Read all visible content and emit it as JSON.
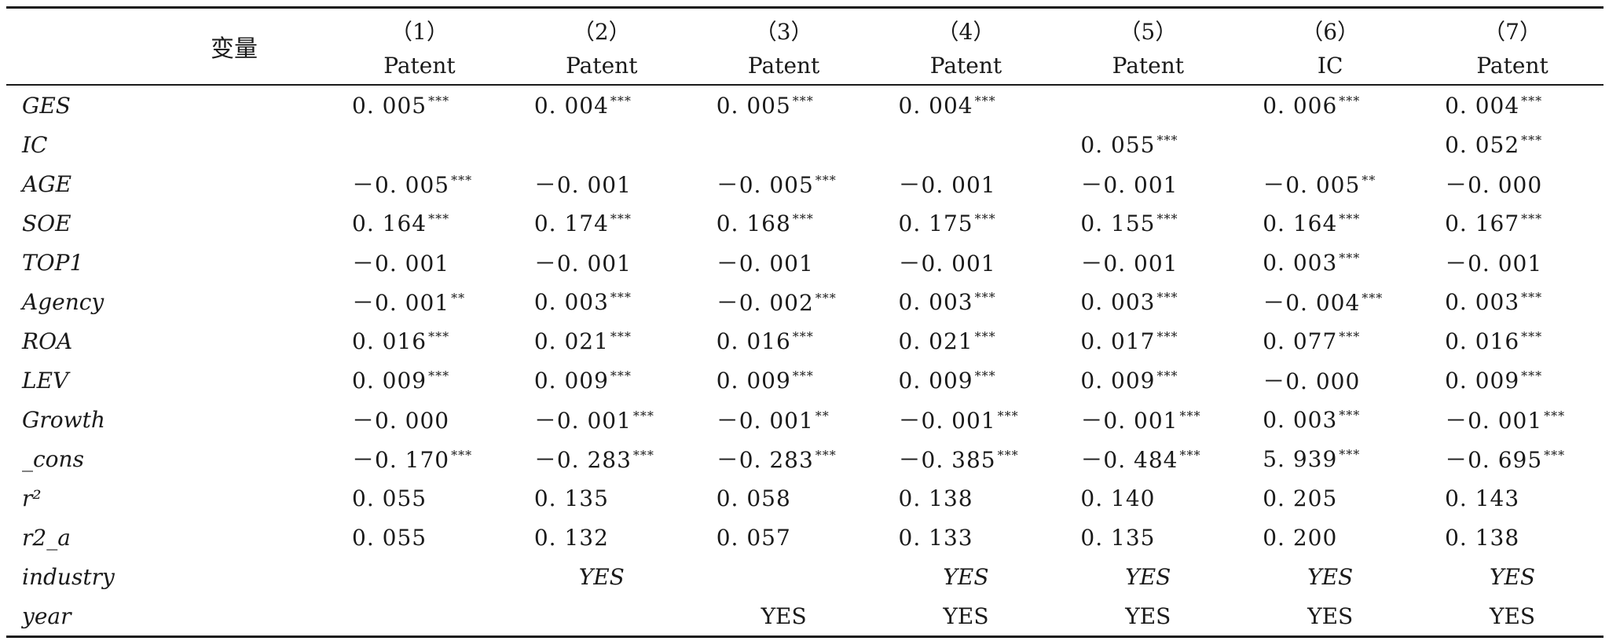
{
  "table": {
    "variable_header": "变量",
    "column_numbers": [
      "（1）",
      "（2）",
      "（3）",
      "（4）",
      "（5）",
      "（6）",
      "（7）"
    ],
    "dependent_vars": [
      "Patent",
      "Patent",
      "Patent",
      "Patent",
      "Patent",
      "IC",
      "Patent"
    ],
    "rows": [
      {
        "var": "GES",
        "cells": [
          {
            "v": "0. 005",
            "s": "***"
          },
          {
            "v": "0. 004",
            "s": "***"
          },
          {
            "v": "0. 005",
            "s": "***"
          },
          {
            "v": "0. 004",
            "s": "***"
          },
          {
            "v": "",
            "s": ""
          },
          {
            "v": "0. 006",
            "s": "***"
          },
          {
            "v": "0. 004",
            "s": "***"
          }
        ]
      },
      {
        "var": "IC",
        "cells": [
          {
            "v": "",
            "s": ""
          },
          {
            "v": "",
            "s": ""
          },
          {
            "v": "",
            "s": ""
          },
          {
            "v": "",
            "s": ""
          },
          {
            "v": "0. 055",
            "s": "***"
          },
          {
            "v": "",
            "s": ""
          },
          {
            "v": "0. 052",
            "s": "***"
          }
        ]
      },
      {
        "var": "AGE",
        "cells": [
          {
            "v": "－0. 005",
            "s": "***"
          },
          {
            "v": "－0. 001",
            "s": ""
          },
          {
            "v": "－0. 005",
            "s": "***"
          },
          {
            "v": "－0. 001",
            "s": ""
          },
          {
            "v": "－0. 001",
            "s": ""
          },
          {
            "v": "－0. 005",
            "s": "**"
          },
          {
            "v": "－0. 000",
            "s": ""
          }
        ]
      },
      {
        "var": "SOE",
        "cells": [
          {
            "v": "0. 164",
            "s": "***"
          },
          {
            "v": "0. 174",
            "s": "***"
          },
          {
            "v": "0. 168",
            "s": "***"
          },
          {
            "v": "0. 175",
            "s": "***"
          },
          {
            "v": "0. 155",
            "s": "***"
          },
          {
            "v": "0. 164",
            "s": "***"
          },
          {
            "v": "0. 167",
            "s": "***"
          }
        ]
      },
      {
        "var": "TOP1",
        "cells": [
          {
            "v": "－0. 001",
            "s": ""
          },
          {
            "v": "－0. 001",
            "s": ""
          },
          {
            "v": "－0. 001",
            "s": ""
          },
          {
            "v": "－0. 001",
            "s": ""
          },
          {
            "v": "－0. 001",
            "s": ""
          },
          {
            "v": "0. 003",
            "s": "***"
          },
          {
            "v": "－0. 001",
            "s": ""
          }
        ]
      },
      {
        "var": "Agency",
        "cells": [
          {
            "v": "－0. 001",
            "s": "**"
          },
          {
            "v": "0. 003",
            "s": "***"
          },
          {
            "v": "－0. 002",
            "s": "***"
          },
          {
            "v": "0. 003",
            "s": "***"
          },
          {
            "v": "0. 003",
            "s": "***"
          },
          {
            "v": "－0. 004",
            "s": "***"
          },
          {
            "v": "0. 003",
            "s": "***"
          }
        ]
      },
      {
        "var": "ROA",
        "cells": [
          {
            "v": "0. 016",
            "s": "***"
          },
          {
            "v": "0. 021",
            "s": "***"
          },
          {
            "v": "0. 016",
            "s": "***"
          },
          {
            "v": "0. 021",
            "s": "***"
          },
          {
            "v": "0. 017",
            "s": "***"
          },
          {
            "v": "0. 077",
            "s": "***"
          },
          {
            "v": "0. 016",
            "s": "***"
          }
        ]
      },
      {
        "var": "LEV",
        "cells": [
          {
            "v": "0. 009",
            "s": "***"
          },
          {
            "v": "0. 009",
            "s": "***"
          },
          {
            "v": "0. 009",
            "s": "***"
          },
          {
            "v": "0. 009",
            "s": "***"
          },
          {
            "v": "0. 009",
            "s": "***"
          },
          {
            "v": "－0. 000",
            "s": ""
          },
          {
            "v": "0. 009",
            "s": "***"
          }
        ]
      },
      {
        "var": "Growth",
        "cells": [
          {
            "v": "－0. 000",
            "s": ""
          },
          {
            "v": "－0. 001",
            "s": "***"
          },
          {
            "v": "－0. 001",
            "s": "**"
          },
          {
            "v": "－0. 001",
            "s": "***"
          },
          {
            "v": "－0. 001",
            "s": "***"
          },
          {
            "v": "0. 003",
            "s": "***"
          },
          {
            "v": "－0. 001",
            "s": "***"
          }
        ]
      },
      {
        "var": "_cons",
        "cells": [
          {
            "v": "－0. 170",
            "s": "***"
          },
          {
            "v": "－0. 283",
            "s": "***"
          },
          {
            "v": "－0. 283",
            "s": "***"
          },
          {
            "v": "－0. 385",
            "s": "***"
          },
          {
            "v": "－0. 484",
            "s": "***"
          },
          {
            "v": "5. 939",
            "s": "***"
          },
          {
            "v": "－0. 695",
            "s": "***"
          }
        ]
      },
      {
        "var": "r²",
        "cells": [
          {
            "v": "0. 055",
            "s": ""
          },
          {
            "v": "0. 135",
            "s": ""
          },
          {
            "v": "0. 058",
            "s": ""
          },
          {
            "v": "0. 138",
            "s": ""
          },
          {
            "v": "0. 140",
            "s": ""
          },
          {
            "v": "0. 205",
            "s": ""
          },
          {
            "v": "0. 143",
            "s": ""
          }
        ]
      },
      {
        "var": "r2_a",
        "cells": [
          {
            "v": "0. 055",
            "s": ""
          },
          {
            "v": "0. 132",
            "s": ""
          },
          {
            "v": "0. 057",
            "s": ""
          },
          {
            "v": "0. 133",
            "s": ""
          },
          {
            "v": "0. 135",
            "s": ""
          },
          {
            "v": "0. 200",
            "s": ""
          },
          {
            "v": "0. 138",
            "s": ""
          }
        ]
      }
    ],
    "fixed_effects": [
      {
        "var": "industry",
        "cells": [
          "",
          "YES",
          "",
          "YES",
          "YES",
          "YES",
          "YES"
        ]
      },
      {
        "var": "year",
        "cells": [
          "",
          "",
          "YES",
          "YES",
          "YES",
          "YES",
          "YES"
        ]
      }
    ]
  }
}
